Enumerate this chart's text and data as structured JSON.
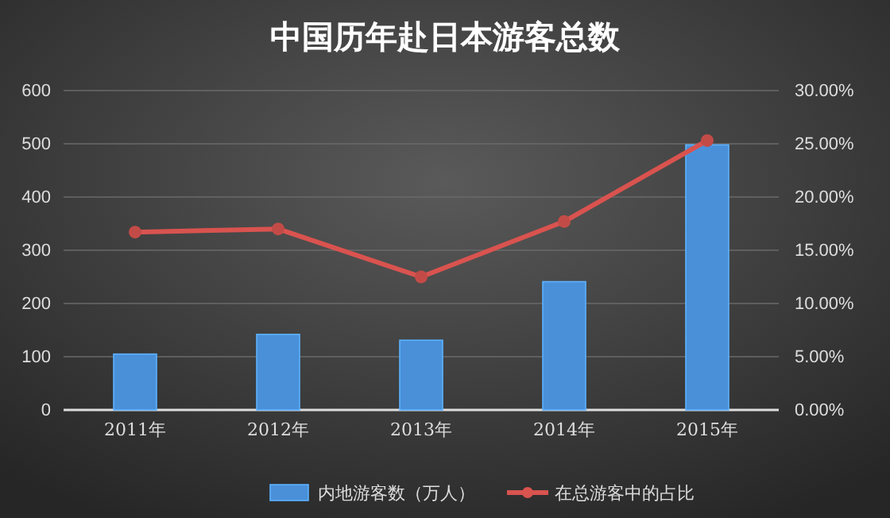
{
  "chart_data": {
    "type": "bar",
    "title": "中国历年赴日本游客总数",
    "categories": [
      "2011年",
      "2012年",
      "2013年",
      "2014年",
      "2015年"
    ],
    "series": [
      {
        "name": "内地游客数（万人）",
        "color": "#4a90d9",
        "values": [
          105,
          142,
          131,
          241,
          498
        ]
      },
      {
        "name": "在总游客中的占比",
        "color": "#d9534f",
        "type": "line",
        "axis": "y2",
        "marker": "circle",
        "values": [
          16.7,
          17.0,
          12.5,
          17.7,
          25.3
        ]
      }
    ],
    "ylim": [
      0,
      600
    ],
    "yticks": [
      0,
      100,
      200,
      300,
      400,
      500,
      600
    ],
    "y2lim": [
      0,
      30
    ],
    "y2ticks": [
      {
        "value": 0,
        "label": "0.00%"
      },
      {
        "value": 5,
        "label": "5.00%"
      },
      {
        "value": 10,
        "label": "10.00%"
      },
      {
        "value": 15,
        "label": "15.00%"
      },
      {
        "value": 20,
        "label": "20.00%"
      },
      {
        "value": 25,
        "label": "25.00%"
      },
      {
        "value": 30,
        "label": "30.00%"
      }
    ],
    "grid": "y",
    "legend": "bottom"
  }
}
